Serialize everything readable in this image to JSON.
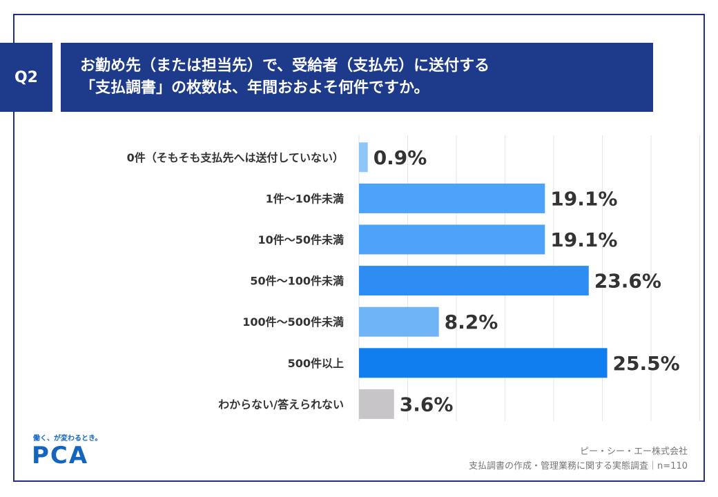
{
  "question": {
    "badge": "Q2",
    "line1": "お勤め先（または担当先）で、受給者（支払先）に送付する",
    "line2": "「支払調書」の枚数は、年間おおよそ何件ですか。"
  },
  "chart_data": {
    "type": "bar",
    "orientation": "horizontal",
    "unit": "%",
    "categories": [
      "0件（そもそも支払先へは送付していない）",
      "1件～10件未満",
      "10件～50件未満",
      "50件～100件未満",
      "100件～500件未満",
      "500件以上",
      "わからない/答えられない"
    ],
    "values": [
      0.9,
      19.1,
      19.1,
      23.6,
      8.2,
      25.5,
      3.6
    ],
    "value_labels": [
      "0.9%",
      "19.1%",
      "19.1%",
      "23.6%",
      "8.2%",
      "25.5%",
      "3.6%"
    ],
    "bar_colors": [
      "#8ec6f7",
      "#4da3f7",
      "#4da3f7",
      "#2f8cf2",
      "#6fb4f7",
      "#117ef0",
      "#c8c5c8"
    ],
    "xlim": [
      0,
      35
    ],
    "grid": true
  },
  "footer": {
    "tagline": "働く、が変わるとき。",
    "logo": "PCA",
    "company": "ピー・シー・エー株式会社",
    "survey": "支払調書の作成・管理業務に関する実態調査｜n=110"
  },
  "colors": {
    "frame": "#1e2f80",
    "banner": "#1e3a8a",
    "brand": "#1565c0"
  }
}
